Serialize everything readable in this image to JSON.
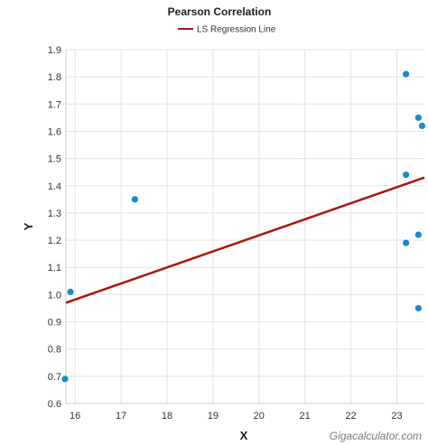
{
  "chart_data": {
    "type": "scatter",
    "title": "Pearson Correlation",
    "xlabel": "X",
    "ylabel": "Y",
    "xlim": [
      15.8,
      23.6
    ],
    "ylim": [
      0.6,
      1.9
    ],
    "x_ticks": [
      16,
      17,
      18,
      19,
      20,
      21,
      22,
      23
    ],
    "y_ticks": [
      0.6,
      0.7,
      0.8,
      0.9,
      1.0,
      1.1,
      1.2,
      1.3,
      1.4,
      1.5,
      1.6,
      1.7,
      1.8,
      1.9
    ],
    "y_tick_labels": [
      "0.6",
      "0.7",
      "0.8",
      "0.9",
      "1.0",
      "1.1",
      "1.2",
      "1.3",
      "1.4",
      "1.5",
      "1.6",
      "1.7",
      "1.8",
      "1.9"
    ],
    "grid": true,
    "legend": {
      "position": "top-center",
      "entries": [
        "LS Regression Line"
      ]
    },
    "series": [
      {
        "type": "scatter",
        "color": "#1a8bc8",
        "points": [
          {
            "x": 15.78,
            "y": 0.69
          },
          {
            "x": 15.9,
            "y": 1.01
          },
          {
            "x": 17.3,
            "y": 1.35
          },
          {
            "x": 23.2,
            "y": 1.81
          },
          {
            "x": 23.2,
            "y": 1.44
          },
          {
            "x": 23.2,
            "y": 1.19
          },
          {
            "x": 23.47,
            "y": 1.65
          },
          {
            "x": 23.55,
            "y": 1.62
          },
          {
            "x": 23.47,
            "y": 1.22
          },
          {
            "x": 23.47,
            "y": 0.95
          }
        ]
      },
      {
        "name": "LS Regression Line",
        "type": "line",
        "color": "#a8160f",
        "points": [
          {
            "x": 15.8,
            "y": 0.97
          },
          {
            "x": 23.6,
            "y": 1.43
          }
        ]
      }
    ]
  },
  "watermark": "Gigacalculator.com"
}
